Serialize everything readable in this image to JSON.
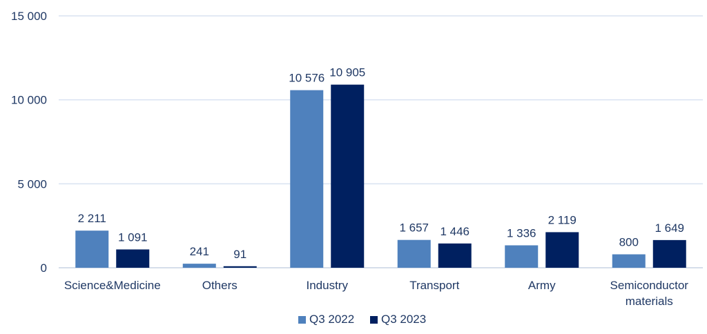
{
  "chart_data": {
    "type": "bar",
    "categories": [
      [
        "Science&Medicine"
      ],
      [
        "Others"
      ],
      [
        "Industry"
      ],
      [
        "Transport"
      ],
      [
        "Army"
      ],
      [
        "Semiconductor",
        "materials"
      ]
    ],
    "series": [
      {
        "name": "Q3 2022",
        "color": "#4f81bd",
        "values": [
          2211,
          241,
          10576,
          1657,
          1336,
          800
        ],
        "labels": [
          "2 211",
          "241",
          "10 576",
          "1 657",
          "1 336",
          "800"
        ]
      },
      {
        "name": "Q3 2023",
        "color": "#002060",
        "values": [
          1091,
          91,
          10905,
          1446,
          2119,
          1649
        ],
        "labels": [
          "1 091",
          "91",
          "10 905",
          "1 446",
          "2 119",
          "1 649"
        ]
      }
    ],
    "ylim": [
      0,
      15000
    ],
    "yticks": [
      0,
      5000,
      10000,
      15000
    ],
    "ytick_labels": [
      "0",
      "5 000",
      "10 000",
      "15 000"
    ],
    "grid": true,
    "legend_position": "bottom-center"
  }
}
